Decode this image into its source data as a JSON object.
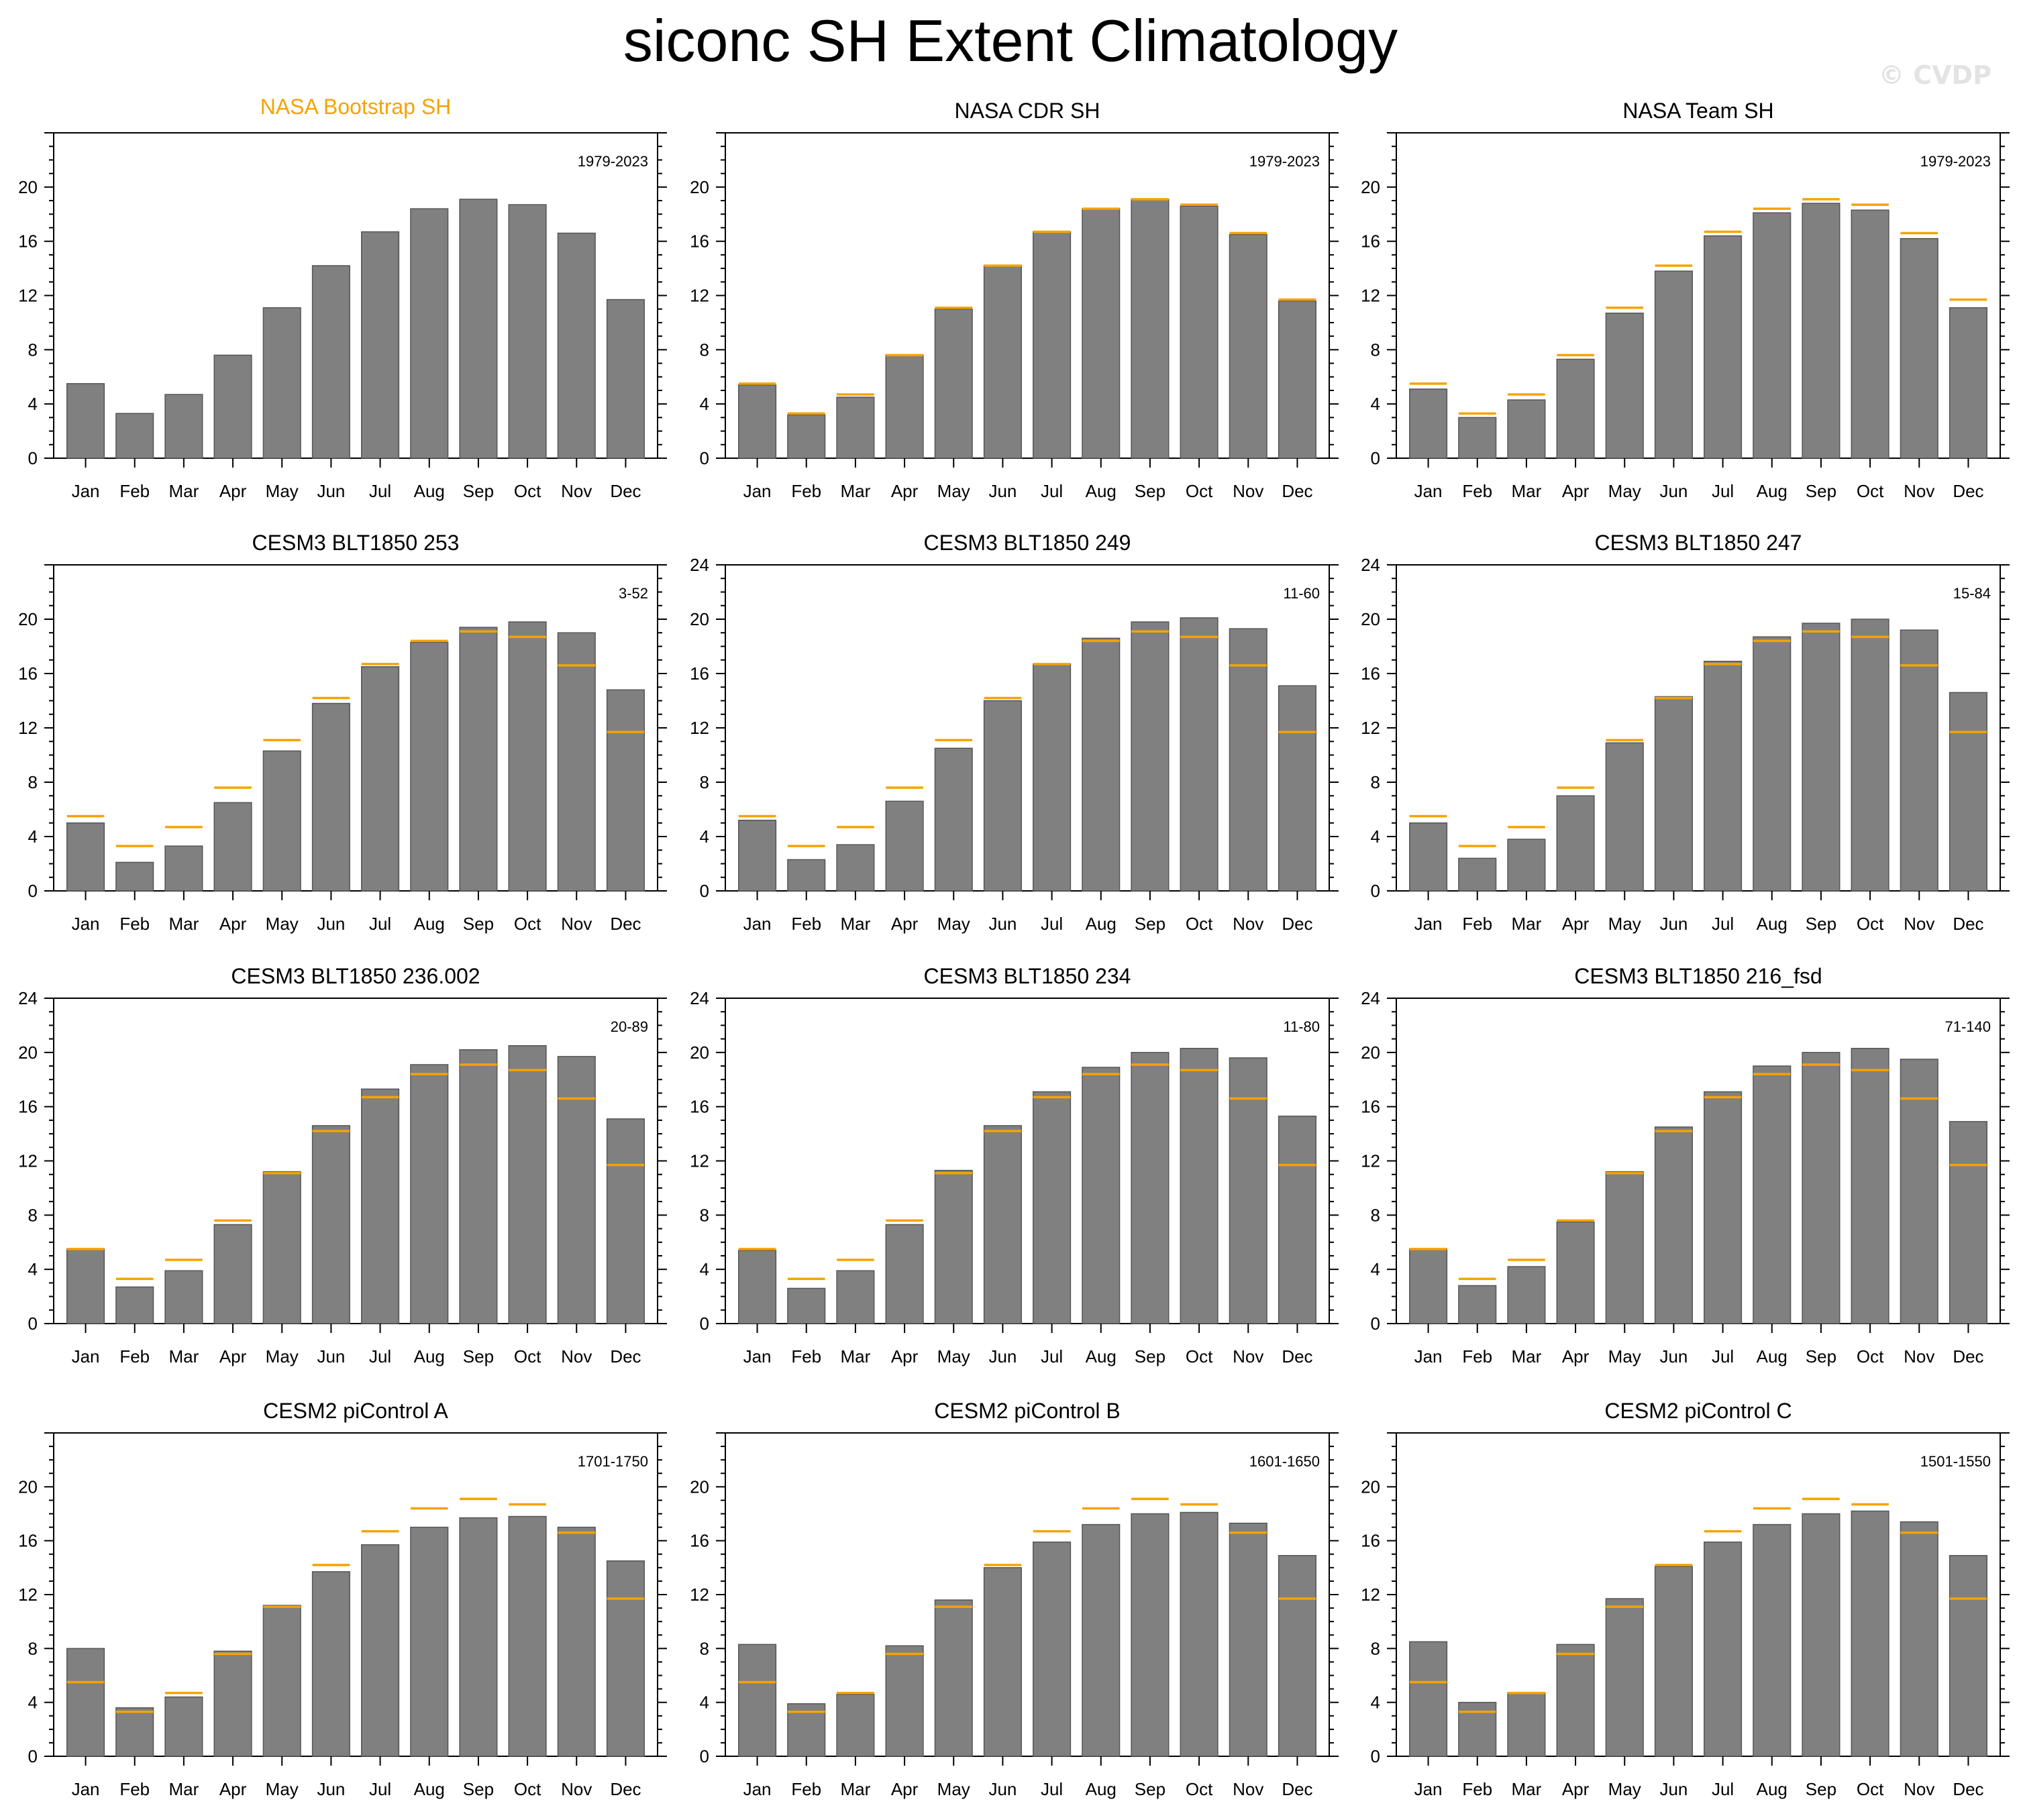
{
  "title": "siconc SH Extent Climatology",
  "watermark": "© CVDP",
  "colors": {
    "bar": "#808080",
    "bar_edge": "#555555",
    "observed_line": "#f5a300",
    "highlight_title": "#f5a300"
  },
  "chart_data": [
    {
      "type": "bar",
      "title": "NASA Bootstrap SH",
      "title_highlight": true,
      "period": "1979-2023",
      "ylim": [
        0,
        24
      ],
      "yticks": [
        0,
        4,
        8,
        12,
        16,
        20
      ],
      "categories": [
        "Jan",
        "Feb",
        "Mar",
        "Apr",
        "May",
        "Jun",
        "Jul",
        "Aug",
        "Sep",
        "Oct",
        "Nov",
        "Dec"
      ],
      "values": [
        5.5,
        3.3,
        4.7,
        7.6,
        11.1,
        14.2,
        16.7,
        18.4,
        19.1,
        18.7,
        16.6,
        11.7
      ],
      "reference": []
    },
    {
      "type": "bar",
      "title": "NASA CDR SH",
      "period": "1979-2023",
      "ylim": [
        0,
        24
      ],
      "yticks": [
        0,
        4,
        8,
        12,
        16,
        20
      ],
      "categories": [
        "Jan",
        "Feb",
        "Mar",
        "Apr",
        "May",
        "Jun",
        "Jul",
        "Aug",
        "Sep",
        "Oct",
        "Nov",
        "Dec"
      ],
      "values": [
        5.4,
        3.2,
        4.5,
        7.6,
        11.0,
        14.2,
        16.7,
        18.4,
        19.1,
        18.6,
        16.5,
        11.6
      ],
      "reference": [
        5.5,
        3.3,
        4.7,
        7.6,
        11.1,
        14.2,
        16.7,
        18.4,
        19.1,
        18.7,
        16.6,
        11.7
      ]
    },
    {
      "type": "bar",
      "title": "NASA Team SH",
      "period": "1979-2023",
      "ylim": [
        0,
        24
      ],
      "yticks": [
        0,
        4,
        8,
        12,
        16,
        20
      ],
      "categories": [
        "Jan",
        "Feb",
        "Mar",
        "Apr",
        "May",
        "Jun",
        "Jul",
        "Aug",
        "Sep",
        "Oct",
        "Nov",
        "Dec"
      ],
      "values": [
        5.1,
        3.0,
        4.3,
        7.3,
        10.7,
        13.8,
        16.4,
        18.1,
        18.8,
        18.3,
        16.2,
        11.1
      ],
      "reference": [
        5.5,
        3.3,
        4.7,
        7.6,
        11.1,
        14.2,
        16.7,
        18.4,
        19.1,
        18.7,
        16.6,
        11.7
      ]
    },
    {
      "type": "bar",
      "title": "CESM3 BLT1850 253",
      "period": "3-52",
      "ylim": [
        0,
        24
      ],
      "yticks": [
        0,
        4,
        8,
        12,
        16,
        20
      ],
      "categories": [
        "Jan",
        "Feb",
        "Mar",
        "Apr",
        "May",
        "Jun",
        "Jul",
        "Aug",
        "Sep",
        "Oct",
        "Nov",
        "Dec"
      ],
      "values": [
        5.0,
        2.1,
        3.3,
        6.5,
        10.3,
        13.8,
        16.5,
        18.3,
        19.4,
        19.8,
        19.0,
        14.8
      ],
      "reference": [
        5.5,
        3.3,
        4.7,
        7.6,
        11.1,
        14.2,
        16.7,
        18.4,
        19.1,
        18.7,
        16.6,
        11.7
      ]
    },
    {
      "type": "bar",
      "title": "CESM3 BLT1850 249",
      "period": "11-60",
      "ylim": [
        0,
        24
      ],
      "yticks": [
        0,
        4,
        8,
        12,
        16,
        20,
        24
      ],
      "categories": [
        "Jan",
        "Feb",
        "Mar",
        "Apr",
        "May",
        "Jun",
        "Jul",
        "Aug",
        "Sep",
        "Oct",
        "Nov",
        "Dec"
      ],
      "values": [
        5.2,
        2.3,
        3.4,
        6.6,
        10.5,
        14.0,
        16.7,
        18.6,
        19.8,
        20.1,
        19.3,
        15.1
      ],
      "reference": [
        5.5,
        3.3,
        4.7,
        7.6,
        11.1,
        14.2,
        16.7,
        18.4,
        19.1,
        18.7,
        16.6,
        11.7
      ]
    },
    {
      "type": "bar",
      "title": "CESM3 BLT1850 247",
      "period": "15-84",
      "ylim": [
        0,
        24
      ],
      "yticks": [
        0,
        4,
        8,
        12,
        16,
        20,
        24
      ],
      "categories": [
        "Jan",
        "Feb",
        "Mar",
        "Apr",
        "May",
        "Jun",
        "Jul",
        "Aug",
        "Sep",
        "Oct",
        "Nov",
        "Dec"
      ],
      "values": [
        5.0,
        2.4,
        3.8,
        7.0,
        10.9,
        14.3,
        16.9,
        18.7,
        19.7,
        20.0,
        19.2,
        14.6
      ],
      "reference": [
        5.5,
        3.3,
        4.7,
        7.6,
        11.1,
        14.2,
        16.7,
        18.4,
        19.1,
        18.7,
        16.6,
        11.7
      ]
    },
    {
      "type": "bar",
      "title": "CESM3 BLT1850 236.002",
      "period": "20-89",
      "ylim": [
        0,
        24
      ],
      "yticks": [
        0,
        4,
        8,
        12,
        16,
        20,
        24
      ],
      "categories": [
        "Jan",
        "Feb",
        "Mar",
        "Apr",
        "May",
        "Jun",
        "Jul",
        "Aug",
        "Sep",
        "Oct",
        "Nov",
        "Dec"
      ],
      "values": [
        5.5,
        2.7,
        3.9,
        7.3,
        11.2,
        14.6,
        17.3,
        19.1,
        20.2,
        20.5,
        19.7,
        15.1
      ],
      "reference": [
        5.5,
        3.3,
        4.7,
        7.6,
        11.1,
        14.2,
        16.7,
        18.4,
        19.1,
        18.7,
        16.6,
        11.7
      ]
    },
    {
      "type": "bar",
      "title": "CESM3 BLT1850 234",
      "period": "11-80",
      "ylim": [
        0,
        24
      ],
      "yticks": [
        0,
        4,
        8,
        12,
        16,
        20,
        24
      ],
      "categories": [
        "Jan",
        "Feb",
        "Mar",
        "Apr",
        "May",
        "Jun",
        "Jul",
        "Aug",
        "Sep",
        "Oct",
        "Nov",
        "Dec"
      ],
      "values": [
        5.4,
        2.6,
        3.9,
        7.3,
        11.3,
        14.6,
        17.1,
        18.9,
        20.0,
        20.3,
        19.6,
        15.3
      ],
      "reference": [
        5.5,
        3.3,
        4.7,
        7.6,
        11.1,
        14.2,
        16.7,
        18.4,
        19.1,
        18.7,
        16.6,
        11.7
      ]
    },
    {
      "type": "bar",
      "title": "CESM3 BLT1850 216_fsd",
      "period": "71-140",
      "ylim": [
        0,
        24
      ],
      "yticks": [
        0,
        4,
        8,
        12,
        16,
        20,
        24
      ],
      "categories": [
        "Jan",
        "Feb",
        "Mar",
        "Apr",
        "May",
        "Jun",
        "Jul",
        "Aug",
        "Sep",
        "Oct",
        "Nov",
        "Dec"
      ],
      "values": [
        5.5,
        2.8,
        4.2,
        7.5,
        11.2,
        14.5,
        17.1,
        19.0,
        20.0,
        20.3,
        19.5,
        14.9
      ],
      "reference": [
        5.5,
        3.3,
        4.7,
        7.6,
        11.1,
        14.2,
        16.7,
        18.4,
        19.1,
        18.7,
        16.6,
        11.7
      ]
    },
    {
      "type": "bar",
      "title": "CESM2 piControl A",
      "period": "1701-1750",
      "ylim": [
        0,
        24
      ],
      "yticks": [
        0,
        4,
        8,
        12,
        16,
        20
      ],
      "categories": [
        "Jan",
        "Feb",
        "Mar",
        "Apr",
        "May",
        "Jun",
        "Jul",
        "Aug",
        "Sep",
        "Oct",
        "Nov",
        "Dec"
      ],
      "values": [
        8.0,
        3.6,
        4.4,
        7.8,
        11.2,
        13.7,
        15.7,
        17.0,
        17.7,
        17.8,
        17.0,
        14.5
      ],
      "reference": [
        5.5,
        3.3,
        4.7,
        7.6,
        11.1,
        14.2,
        16.7,
        18.4,
        19.1,
        18.7,
        16.6,
        11.7
      ]
    },
    {
      "type": "bar",
      "title": "CESM2 piControl B",
      "period": "1601-1650",
      "ylim": [
        0,
        24
      ],
      "yticks": [
        0,
        4,
        8,
        12,
        16,
        20
      ],
      "categories": [
        "Jan",
        "Feb",
        "Mar",
        "Apr",
        "May",
        "Jun",
        "Jul",
        "Aug",
        "Sep",
        "Oct",
        "Nov",
        "Dec"
      ],
      "values": [
        8.3,
        3.9,
        4.6,
        8.2,
        11.6,
        14.0,
        15.9,
        17.2,
        18.0,
        18.1,
        17.3,
        14.9
      ],
      "reference": [
        5.5,
        3.3,
        4.7,
        7.6,
        11.1,
        14.2,
        16.7,
        18.4,
        19.1,
        18.7,
        16.6,
        11.7
      ]
    },
    {
      "type": "bar",
      "title": "CESM2 piControl C",
      "period": "1501-1550",
      "ylim": [
        0,
        24
      ],
      "yticks": [
        0,
        4,
        8,
        12,
        16,
        20
      ],
      "categories": [
        "Jan",
        "Feb",
        "Mar",
        "Apr",
        "May",
        "Jun",
        "Jul",
        "Aug",
        "Sep",
        "Oct",
        "Nov",
        "Dec"
      ],
      "values": [
        8.5,
        4.0,
        4.7,
        8.3,
        11.7,
        14.1,
        15.9,
        17.2,
        18.0,
        18.2,
        17.4,
        14.9
      ],
      "reference": [
        5.5,
        3.3,
        4.7,
        7.6,
        11.1,
        14.2,
        16.7,
        18.4,
        19.1,
        18.7,
        16.6,
        11.7
      ]
    }
  ]
}
